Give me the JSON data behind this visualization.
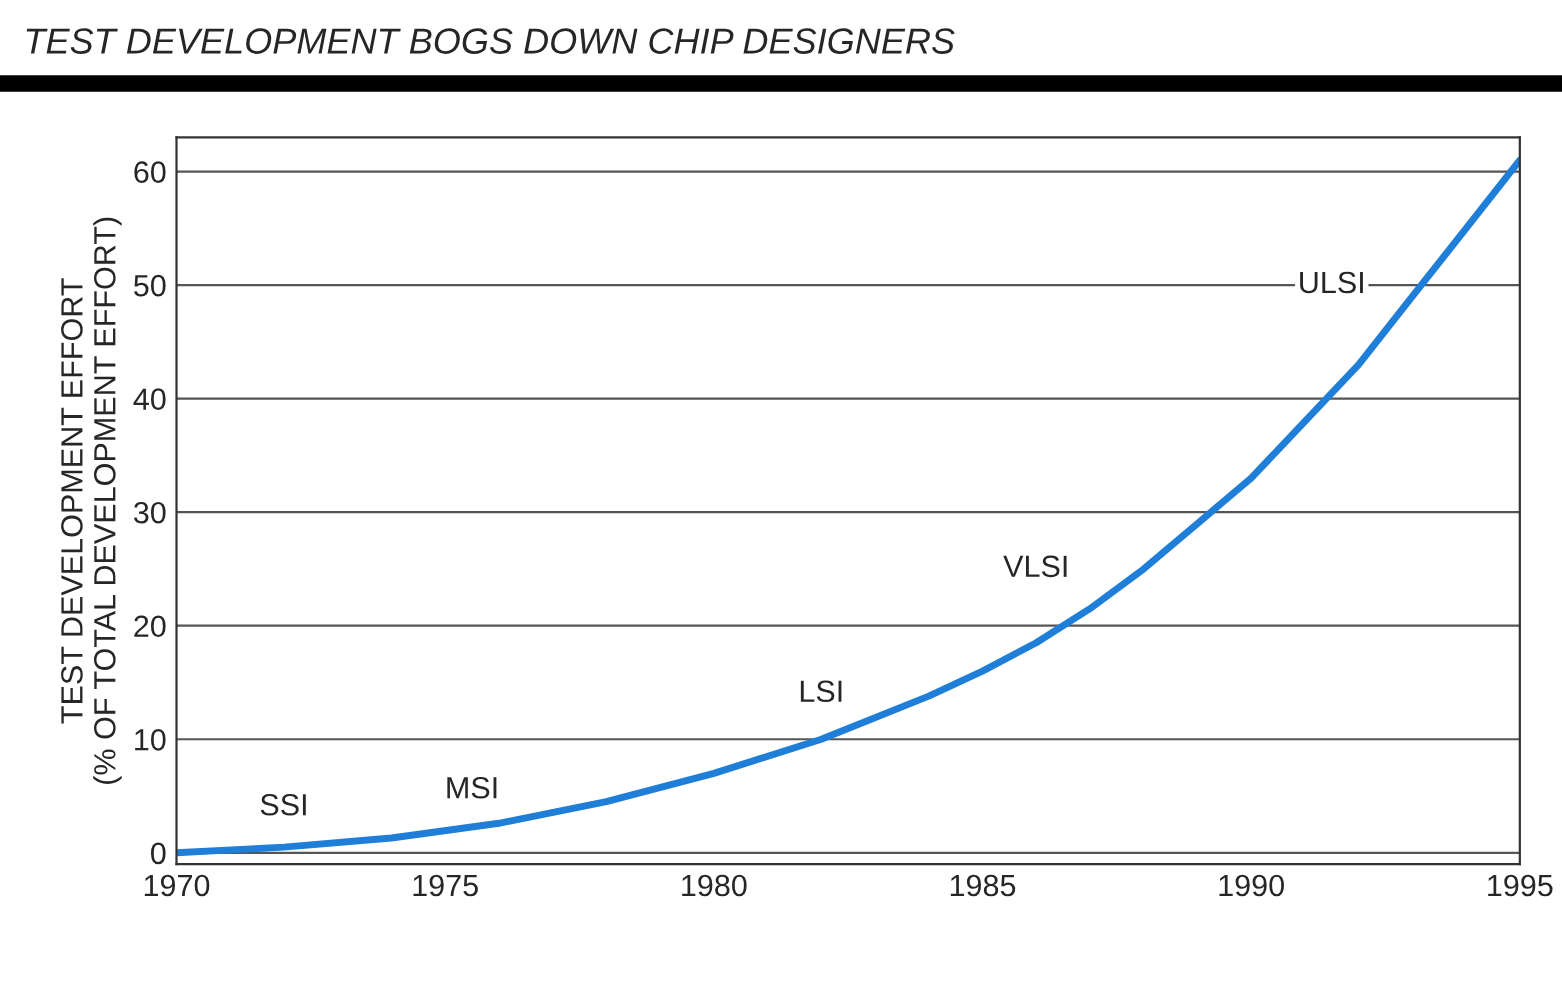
{
  "chart_data": {
    "type": "line",
    "title": "TEST DEVELOPMENT BOGS DOWN CHIP DESIGNERS",
    "ylabel": "TEST DEVELOPMENT EFFORT\n(% OF TOTAL DEVELOPMENT EFFORT)",
    "x": [
      1970,
      1972,
      1974,
      1976,
      1978,
      1980,
      1982,
      1984,
      1985,
      1986,
      1987,
      1988,
      1989,
      1990,
      1991,
      1992,
      1993,
      1994,
      1995
    ],
    "series": [
      {
        "color": "#1f7fd8",
        "values": [
          0,
          0.5,
          1.3,
          2.6,
          4.5,
          7,
          10,
          13.8,
          16,
          18.5,
          21.5,
          25,
          29,
          33,
          38,
          43,
          49,
          55,
          61
        ]
      }
    ],
    "xlim": [
      1970,
      1995
    ],
    "xticks": [
      1970,
      1975,
      1980,
      1985,
      1990,
      1995
    ],
    "ylim": [
      -1,
      63
    ],
    "yticks": [
      0,
      10,
      20,
      30,
      40,
      50,
      60
    ],
    "grid": "y",
    "marker": "none",
    "line_style": "solid",
    "annotations": [
      {
        "text": "SSI",
        "x": 1972,
        "y": 4
      },
      {
        "text": "MSI",
        "x": 1975.5,
        "y": 5.5
      },
      {
        "text": "LSI",
        "x": 1982,
        "y": 14
      },
      {
        "text": "VLSI",
        "x": 1986,
        "y": 25
      },
      {
        "text": "ULSI",
        "x": 1991.5,
        "y": 50
      }
    ]
  }
}
